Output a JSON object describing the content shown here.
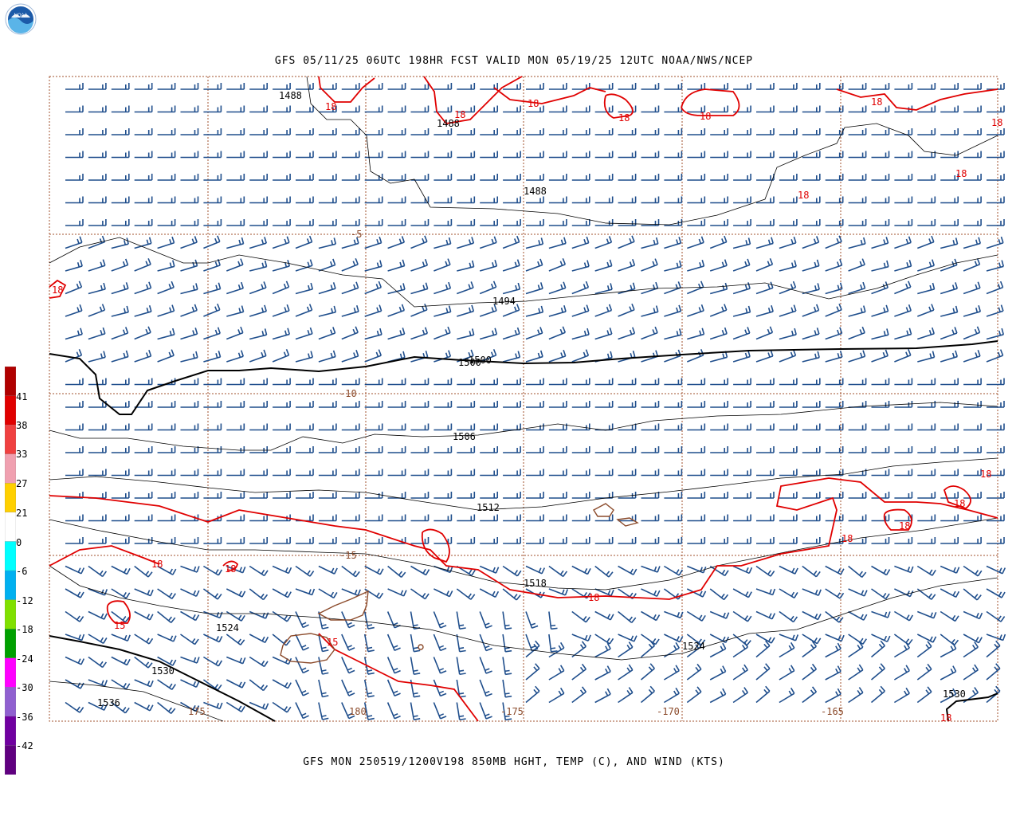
{
  "header": {
    "logo_text": "NOAA",
    "title": "GFS 05/11/25 06UTC 198HR FCST VALID MON 05/19/25 12UTC NOAA/NWS/NCEP"
  },
  "footer": {
    "caption": "GFS MON 250519/1200V198 850MB HGHT, TEMP (C), AND WIND (KTS)"
  },
  "colors": {
    "barb": "#1f4e8c",
    "height_contour": "#000000",
    "temp_contour": "#e00000",
    "coastline": "#8b4a2a",
    "grid": "#a0522d"
  },
  "colorbar": {
    "levels": [
      {
        "label": "41",
        "color": "#c00000"
      },
      {
        "label": "38",
        "color": "#e03030"
      },
      {
        "label": "33",
        "color": "#f06060"
      },
      {
        "label": "27",
        "color": "#f8a0a8"
      },
      {
        "label": "21",
        "color": "#f0c000"
      },
      {
        "label": "0",
        "color": "#ffffff"
      },
      {
        "label": "-6",
        "color": "#00e0f0"
      },
      {
        "label": "-12",
        "color": "#0090e0"
      },
      {
        "label": "-18",
        "color": "#60d000"
      },
      {
        "label": "-24",
        "color": "#009020"
      },
      {
        "label": "-30",
        "color": "#ff00c0"
      },
      {
        "label": "-36",
        "color": "#8060c0"
      },
      {
        "label": "-42",
        "color": "#8000a0"
      }
    ],
    "extra_colors": [
      "#b00000",
      "#e00000",
      "#f04040",
      "#f0a0b0",
      "#ffd000",
      "#ffffff",
      "#00ffff",
      "#00b0f0",
      "#80e000",
      "#00a000",
      "#ff00ff",
      "#9060d0",
      "#7000a0",
      "#600080"
    ]
  },
  "map": {
    "longitude_labels": [
      "175",
      "180",
      "-175",
      "-170",
      "-165"
    ],
    "latitude_labels": [
      "-5",
      "-10",
      "-15"
    ],
    "height_labels": [
      "1488",
      "1488",
      "1488",
      "1494",
      "1500",
      "1500",
      "1506",
      "1512",
      "1518",
      "1524",
      "1524",
      "1530",
      "1536",
      "1530"
    ],
    "temp_labels": [
      "18",
      "18",
      "18",
      "18",
      "18",
      "18",
      "18",
      "18",
      "18",
      "18",
      "18",
      "18",
      "18",
      "18",
      "18",
      "18",
      "18",
      "18",
      "15",
      "15"
    ]
  }
}
